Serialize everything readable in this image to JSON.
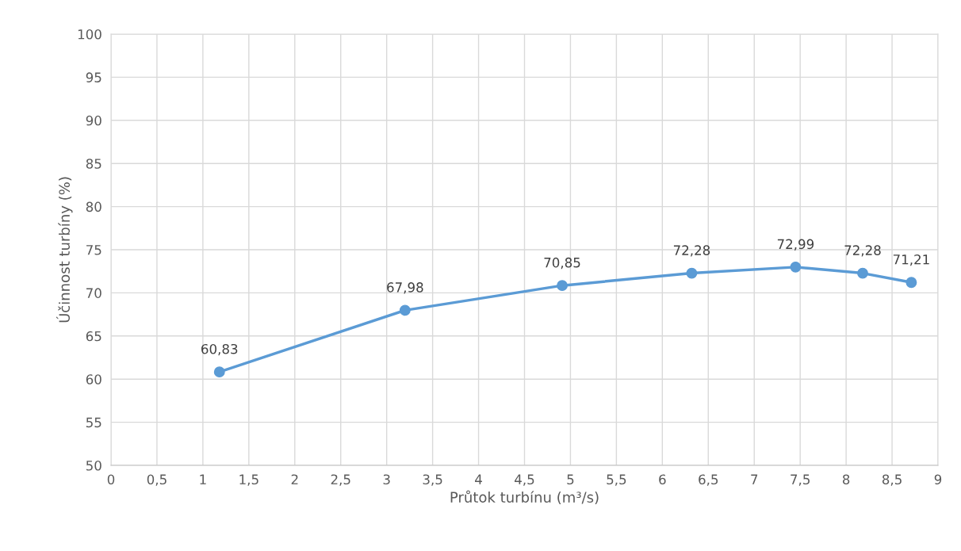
{
  "chart_data": {
    "type": "line",
    "xlabel": "Průtok turbínu (m³/s)",
    "ylabel": "Účinnost turbíny (%)",
    "x": [
      1.18,
      3.2,
      4.91,
      6.32,
      7.45,
      8.18,
      8.71
    ],
    "series": [
      {
        "color": "#5b9bd5",
        "values": [
          60.83,
          67.98,
          70.85,
          72.28,
          72.99,
          72.28,
          71.21
        ],
        "value_labels": [
          "60,83",
          "67,98",
          "70,85",
          "72,28",
          "72,99",
          "72,28",
          "71,21"
        ]
      }
    ],
    "xlim": [
      0,
      9
    ],
    "xticks": [
      0,
      {
        "value": 0.5,
        "label": "0,5"
      },
      1,
      {
        "value": 1.5,
        "label": "1,5"
      },
      2,
      {
        "value": 2.5,
        "label": "2,5"
      },
      3,
      {
        "value": 3.5,
        "label": "3,5"
      },
      4,
      {
        "value": 4.5,
        "label": "4,5"
      },
      5,
      {
        "value": 5.5,
        "label": "5,5"
      },
      6,
      {
        "value": 6.5,
        "label": "6,5"
      },
      7,
      {
        "value": 7.5,
        "label": "7,5"
      },
      8,
      {
        "value": 8.5,
        "label": "8,5"
      },
      9
    ],
    "ylim": [
      50,
      100
    ],
    "yticks": [
      50,
      55,
      60,
      65,
      70,
      75,
      80,
      85,
      90,
      95,
      100
    ],
    "grid": true,
    "legend": false,
    "marker": "circle",
    "line_style": "solid"
  }
}
